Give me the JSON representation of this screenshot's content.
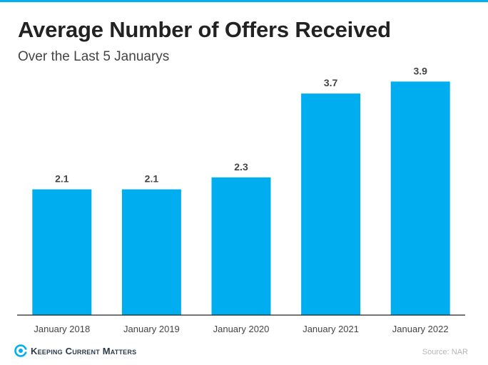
{
  "header": {
    "title": "Average Number of Offers Received",
    "subtitle": "Over the Last 5 Januarys"
  },
  "chart_data": {
    "type": "bar",
    "categories": [
      "January 2018",
      "January 2019",
      "January 2020",
      "January 2021",
      "January 2022"
    ],
    "values": [
      2.1,
      2.1,
      2.3,
      3.7,
      3.9
    ],
    "data_labels": [
      "2.1",
      "2.1",
      "2.3",
      "3.7",
      "3.9"
    ],
    "title": "Average Number of Offers Received",
    "subtitle": "Over the Last 5 Januarys",
    "xlabel": "",
    "ylabel": "",
    "ylim": [
      0,
      4.0
    ],
    "grid": false,
    "bar_color": "#00aeef"
  },
  "footer": {
    "logo_text": "Keeping Current Matters",
    "source": "Source: NAR"
  },
  "colors": {
    "accent": "#00b1f0",
    "bar": "#00aeef",
    "title": "#222222"
  }
}
